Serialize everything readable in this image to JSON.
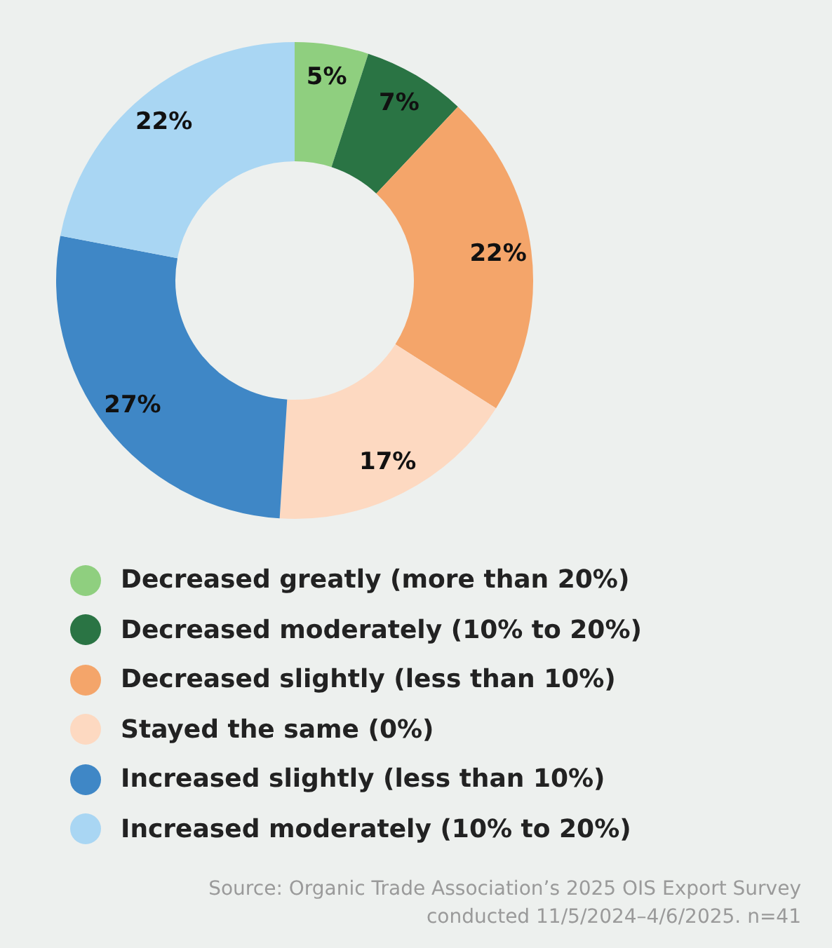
{
  "chart_data": {
    "type": "donut",
    "categories": [
      "Decreased greatly (more than 20%)",
      "Decreased moderately (10% to 20%)",
      "Decreased slightly (less than 10%)",
      "Stayed the same (0%)",
      "Increased slightly (less than 10%)",
      "Increased moderately (10% to 20%)"
    ],
    "values": [
      5,
      7,
      22,
      17,
      27,
      22
    ],
    "value_labels": [
      "5%",
      "7%",
      "22%",
      "17%",
      "27%",
      "22%"
    ],
    "colors": [
      "#8fcf7f",
      "#2a7444",
      "#f4a56a",
      "#fdd9c1",
      "#3f87c6",
      "#a9d6f3"
    ],
    "legend": "bottom",
    "annotations": [
      "Source: Organic Trade Association’s 2025 OIS Export Survey conducted 11/5/2024–4/6/2025. n=41"
    ]
  }
}
